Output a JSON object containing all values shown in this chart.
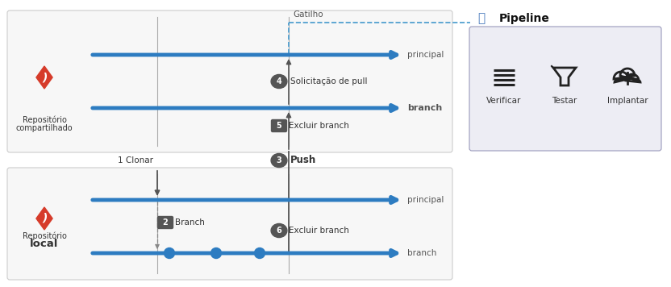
{
  "bg_color": "#ffffff",
  "box_edge": "#cccccc",
  "box_face": "#f7f7f7",
  "pipeline_box_face": "#ededf4",
  "pipeline_box_edge": "#9999bb",
  "blue": "#2d7cc1",
  "dashed_blue": "#4499cc",
  "dark_gray": "#555555",
  "mid_gray": "#888888",
  "light_gray": "#aaaaaa",
  "red_git": "#d63b2a",
  "txt": "#333333",
  "lbl": "#555555",
  "white": "#ffffff",
  "repo_shared_line1": "Repositório",
  "repo_shared_line2": "compartilhado",
  "repo_local_line1": "Repositório",
  "repo_local_line2": "local",
  "pipeline_title": "Pipeline",
  "gatilho": "Gatilho",
  "principal": "principal",
  "branch_lbl": "branch",
  "s1": "1 Clonar",
  "s2": "Branch",
  "s3": "Push",
  "s4": "Solicitação de pull",
  "s5": "Excluir branch",
  "s6": "Excluir branch",
  "verificar": "Verificar",
  "testar": "Testar",
  "implantar": "Implantar"
}
